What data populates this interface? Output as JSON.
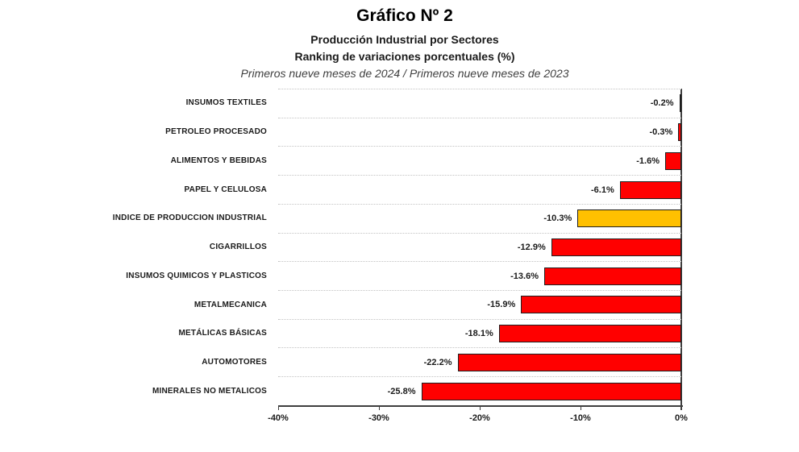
{
  "header": {
    "title": "Gráfico Nº 2",
    "subtitle1": "Producción Industrial por Sectores",
    "subtitle2": "Ranking de variaciones porcentuales (%)",
    "period_note": "Primeros nueve meses de 2024 / Primeros nueve meses de 2023"
  },
  "chart_data": {
    "type": "bar",
    "orientation": "horizontal",
    "title": "Producción Industrial por Sectores — Ranking de variaciones porcentuales (%)",
    "categories": [
      "INSUMOS TEXTILES",
      "PETROLEO PROCESADO",
      "ALIMENTOS Y BEBIDAS",
      "PAPEL Y CELULOSA",
      "INDICE DE PRODUCCION INDUSTRIAL",
      "CIGARRILLOS",
      "INSUMOS QUIMICOS Y PLASTICOS",
      "METALMECANICA",
      "METÁLICAS BÁSICAS",
      "AUTOMOTORES",
      "MINERALES NO METALICOS"
    ],
    "values": [
      -0.2,
      -0.3,
      -1.6,
      -6.1,
      -10.3,
      -12.9,
      -13.6,
      -15.9,
      -18.1,
      -22.2,
      -25.8
    ],
    "value_labels": [
      "-0.2%",
      "-0.3%",
      "-1.6%",
      "-6.1%",
      "-10.3%",
      "-12.9%",
      "-13.6%",
      "-15.9%",
      "-18.1%",
      "-22.2%",
      "-25.8%"
    ],
    "highlight_index": 4,
    "highlight_category": "INDICE DE PRODUCCION INDUSTRIAL",
    "xlim": [
      -40,
      0
    ],
    "x_ticks": [
      -40,
      -30,
      -20,
      -10,
      0
    ],
    "x_tick_labels": [
      "-40%",
      "-30%",
      "-20%",
      "-10%",
      "0%"
    ],
    "xlabel": "",
    "ylabel": "",
    "legend": "none",
    "grid": "dotted horizontal row separators",
    "bar_color": "#FF0000",
    "highlight_color": "#FFC000",
    "bar_border_color": "#1F1F1F",
    "axis_color": "#3F3F3F",
    "gridline_color": "#C3C3C3"
  }
}
